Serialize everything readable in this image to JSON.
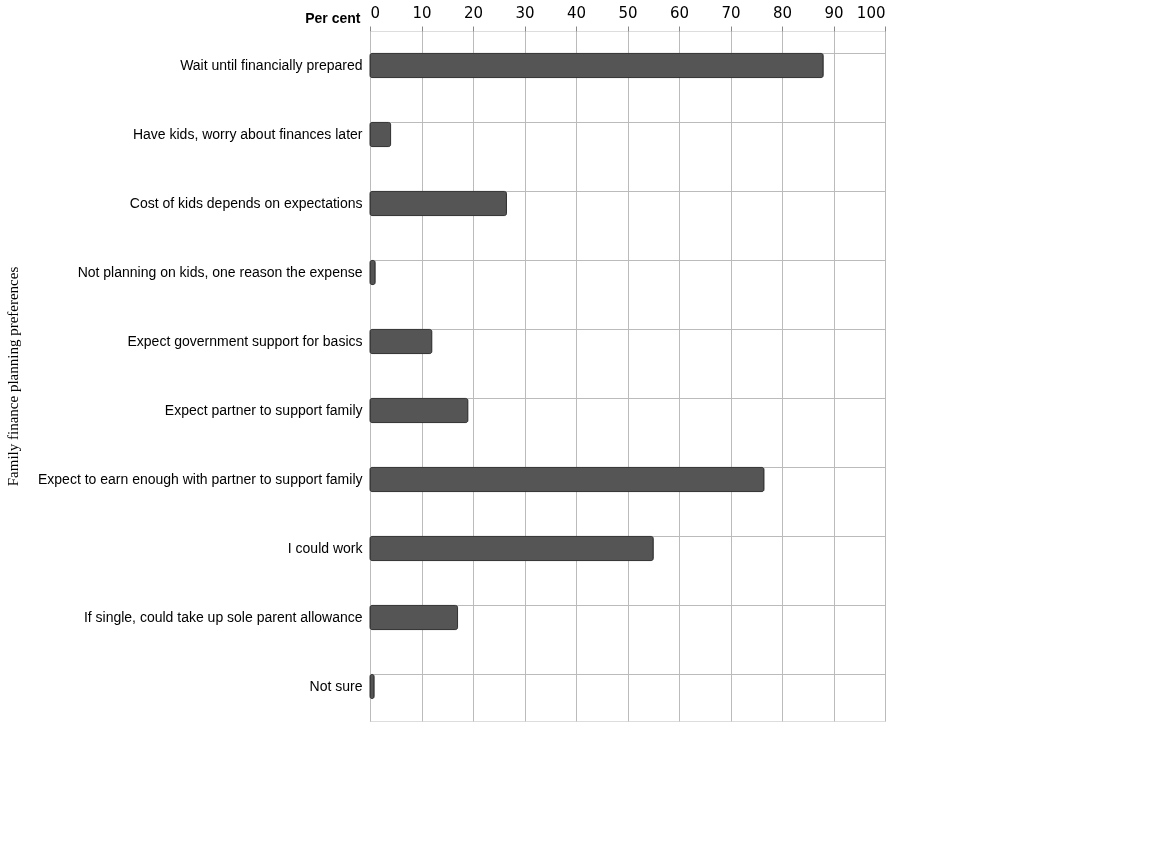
{
  "chart_data": {
    "type": "bar",
    "orientation": "horizontal",
    "xlabel": "Per cent",
    "ylabel": "Family finance planning preferences",
    "categories": [
      "Wait until financially prepared",
      "Have kids, worry about finances later",
      "Cost of kids depends on expectations",
      "Not planning on kids, one reason the expense",
      "Expect government support for basics",
      "Expect partner to support family",
      "Expect to earn enough with partner to support family",
      "I could work",
      "If single, could take up sole parent allowance",
      "Not sure"
    ],
    "values": [
      88,
      4,
      26.5,
      1,
      12,
      19,
      76.5,
      55,
      17,
      0.8
    ],
    "color": "#555555",
    "xlim": [
      0,
      100
    ],
    "xticks": [
      0,
      10,
      20,
      30,
      40,
      50,
      60,
      70,
      80,
      90,
      100
    ],
    "grid": true
  }
}
